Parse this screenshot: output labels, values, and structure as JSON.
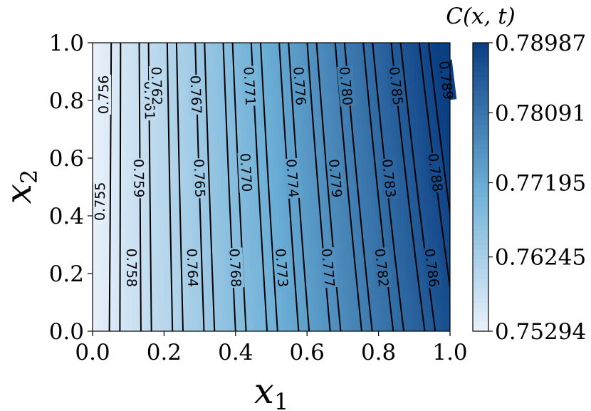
{
  "chart_data": {
    "type": "contour",
    "xlabel": "x",
    "xlabel_sub": "1",
    "ylabel": "x",
    "ylabel_sub": "2",
    "xlim": [
      0.0,
      1.0
    ],
    "ylim": [
      0.0,
      1.0
    ],
    "xticks": [
      "0.0",
      "0.2",
      "0.4",
      "0.6",
      "0.8",
      "1.0"
    ],
    "yticks": [
      "0.0",
      "0.2",
      "0.4",
      "0.6",
      "0.8",
      "1.0"
    ],
    "colorbar": {
      "title": "C(x, t)",
      "range": [
        0.75294,
        0.78987
      ],
      "ticks": [
        "0.75294",
        "0.76245",
        "0.77195",
        "0.78091",
        "0.78987"
      ],
      "tick_values": [
        0.75294,
        0.76245,
        0.77195,
        0.78091,
        0.78987
      ],
      "colormap": "Blues",
      "color_low": "#eaf2fb",
      "color_high": "#0b3f83"
    },
    "field": {
      "value_at_x1_0_x2_0": 0.7534,
      "value_at_x1_1_x2_0": 0.7874,
      "value_at_x1_0_x2_1": 0.753,
      "value_at_x1_1_x2_1": 0.7913
    },
    "contour_levels": [
      0.755,
      0.756,
      0.758,
      0.759,
      0.761,
      0.762,
      0.764,
      0.765,
      0.767,
      0.768,
      0.77,
      0.771,
      0.773,
      0.774,
      0.776,
      0.777,
      0.779,
      0.78,
      0.782,
      0.783,
      0.785,
      0.786,
      0.788,
      0.789
    ],
    "contour_labels": [
      {
        "text": "0.756",
        "x1": 0.03,
        "x2": 0.82
      },
      {
        "text": "0.761",
        "x1": 0.16,
        "x2": 0.8
      },
      {
        "text": "0.762",
        "x1": 0.18,
        "x2": 0.85
      },
      {
        "text": "0.767",
        "x1": 0.29,
        "x2": 0.82
      },
      {
        "text": "0.771",
        "x1": 0.44,
        "x2": 0.85
      },
      {
        "text": "0.776",
        "x1": 0.58,
        "x2": 0.85
      },
      {
        "text": "0.780",
        "x1": 0.71,
        "x2": 0.85
      },
      {
        "text": "0.785",
        "x1": 0.85,
        "x2": 0.85
      },
      {
        "text": "0.789",
        "x1": 0.99,
        "x2": 0.87
      },
      {
        "text": "0.759",
        "x1": 0.13,
        "x2": 0.53
      },
      {
        "text": "0.765",
        "x1": 0.3,
        "x2": 0.53
      },
      {
        "text": "0.770",
        "x1": 0.43,
        "x2": 0.55
      },
      {
        "text": "0.774",
        "x1": 0.56,
        "x2": 0.53
      },
      {
        "text": "0.779",
        "x1": 0.68,
        "x2": 0.53
      },
      {
        "text": "0.783",
        "x1": 0.83,
        "x2": 0.53
      },
      {
        "text": "0.788",
        "x1": 0.96,
        "x2": 0.55
      },
      {
        "text": "0.755",
        "x1": 0.02,
        "x2": 0.45
      },
      {
        "text": "0.758",
        "x1": 0.11,
        "x2": 0.22
      },
      {
        "text": "0.764",
        "x1": 0.28,
        "x2": 0.22
      },
      {
        "text": "0.768",
        "x1": 0.4,
        "x2": 0.22
      },
      {
        "text": "0.773",
        "x1": 0.53,
        "x2": 0.22
      },
      {
        "text": "0.777",
        "x1": 0.66,
        "x2": 0.22
      },
      {
        "text": "0.782",
        "x1": 0.81,
        "x2": 0.22
      },
      {
        "text": "0.786",
        "x1": 0.95,
        "x2": 0.22
      }
    ]
  }
}
